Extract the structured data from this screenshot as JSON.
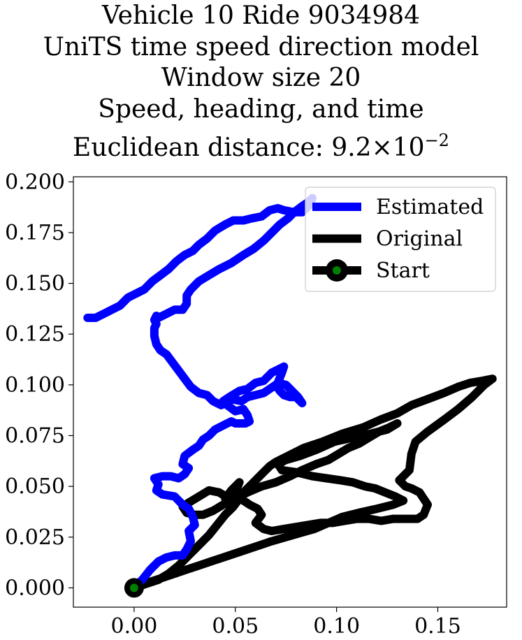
{
  "chart_data": {
    "type": "line",
    "title_lines": [
      "Vehicle 10 Ride 9034984",
      "UniTS time speed direction model",
      "Window size 20",
      "Speed, heading, and time",
      "Euclidean distance: 9.2×10",
      "−2"
    ],
    "xlabel": "",
    "ylabel": "",
    "xlim": [
      -0.03,
      0.184
    ],
    "ylim": [
      -0.0095,
      0.2025
    ],
    "xticks": [
      0.0,
      0.05,
      0.1,
      0.15
    ],
    "xtick_labels": [
      "0.00",
      "0.05",
      "0.10",
      "0.15"
    ],
    "yticks": [
      0.0,
      0.025,
      0.05,
      0.075,
      0.1,
      0.125,
      0.15,
      0.175,
      0.2
    ],
    "ytick_labels": [
      "0.000",
      "0.025",
      "0.050",
      "0.075",
      "0.100",
      "0.125",
      "0.150",
      "0.175",
      "0.200"
    ],
    "grid": false,
    "legend_position": "top-right",
    "colors": {
      "estimated": "#0000ff",
      "original": "#000000",
      "start": "#008000"
    },
    "series": [
      {
        "name": "Estimated",
        "color": "#0000ff",
        "x": [
          0.0,
          0.004,
          0.008,
          0.012,
          0.016,
          0.02,
          0.024,
          0.026,
          0.028,
          0.027,
          0.03,
          0.029,
          0.027,
          0.024,
          0.02,
          0.014,
          0.011,
          0.012,
          0.01,
          0.014,
          0.018,
          0.022,
          0.025,
          0.027,
          0.024,
          0.025,
          0.029,
          0.032,
          0.034,
          0.037,
          0.04,
          0.044,
          0.048,
          0.05,
          0.055,
          0.057,
          0.056,
          0.054,
          0.05,
          0.046,
          0.044,
          0.047,
          0.052,
          0.056,
          0.06,
          0.064,
          0.068,
          0.072,
          0.074,
          0.073,
          0.071,
          0.075,
          0.078,
          0.081,
          0.083,
          0.082,
          0.08,
          0.077,
          0.074,
          0.072,
          0.07,
          0.067,
          0.064,
          0.06,
          0.056,
          0.053,
          0.048,
          0.043,
          0.039,
          0.036,
          0.032,
          0.028,
          0.025,
          0.022,
          0.019,
          0.016,
          0.013,
          0.011,
          0.01,
          0.01,
          0.011,
          0.01,
          0.011,
          0.012,
          0.016,
          0.02,
          0.024,
          0.026,
          0.026,
          0.028,
          0.032,
          0.037,
          0.042,
          0.048,
          0.054,
          0.059,
          0.064,
          0.068,
          0.072,
          0.076,
          0.079,
          0.083,
          0.086,
          0.088,
          0.087,
          0.083,
          0.079,
          0.074,
          0.071,
          0.067,
          0.063,
          0.058,
          0.054,
          0.049,
          0.045,
          0.04,
          0.036,
          0.032,
          0.029,
          0.025,
          0.021,
          0.017,
          0.013,
          0.009,
          0.005,
          0.001,
          -0.003,
          -0.007,
          -0.011,
          -0.015,
          -0.019,
          -0.023
        ],
        "y": [
          0.0,
          0.004,
          0.009,
          0.013,
          0.015,
          0.016,
          0.016,
          0.019,
          0.023,
          0.028,
          0.031,
          0.035,
          0.039,
          0.041,
          0.045,
          0.046,
          0.048,
          0.051,
          0.054,
          0.055,
          0.055,
          0.054,
          0.056,
          0.059,
          0.061,
          0.065,
          0.068,
          0.07,
          0.073,
          0.075,
          0.078,
          0.08,
          0.082,
          0.081,
          0.081,
          0.082,
          0.085,
          0.088,
          0.087,
          0.09,
          0.092,
          0.094,
          0.097,
          0.098,
          0.101,
          0.102,
          0.106,
          0.108,
          0.109,
          0.106,
          0.101,
          0.1,
          0.097,
          0.094,
          0.091,
          0.092,
          0.094,
          0.094,
          0.095,
          0.097,
          0.1,
          0.098,
          0.096,
          0.095,
          0.094,
          0.092,
          0.093,
          0.09,
          0.092,
          0.095,
          0.096,
          0.099,
          0.103,
          0.107,
          0.111,
          0.115,
          0.117,
          0.12,
          0.124,
          0.128,
          0.13,
          0.132,
          0.134,
          0.133,
          0.135,
          0.137,
          0.137,
          0.14,
          0.144,
          0.147,
          0.151,
          0.154,
          0.157,
          0.16,
          0.164,
          0.167,
          0.171,
          0.175,
          0.179,
          0.182,
          0.185,
          0.188,
          0.19,
          0.192,
          0.189,
          0.185,
          0.185,
          0.186,
          0.187,
          0.186,
          0.183,
          0.182,
          0.181,
          0.181,
          0.179,
          0.176,
          0.172,
          0.169,
          0.166,
          0.164,
          0.161,
          0.157,
          0.154,
          0.151,
          0.147,
          0.145,
          0.143,
          0.139,
          0.137,
          0.135,
          0.133,
          0.133
        ]
      },
      {
        "name": "Original",
        "color": "#000000",
        "x": [
          0.0,
          0.006,
          0.012,
          0.017,
          0.022,
          0.027,
          0.032,
          0.037,
          0.041,
          0.045,
          0.049,
          0.052,
          0.055,
          0.058,
          0.061,
          0.064,
          0.067,
          0.07,
          0.076,
          0.084,
          0.093,
          0.103,
          0.113,
          0.122,
          0.13,
          0.137,
          0.145,
          0.153,
          0.16,
          0.166,
          0.172,
          0.177,
          0.173,
          0.167,
          0.16,
          0.152,
          0.145,
          0.139,
          0.137,
          0.136,
          0.131,
          0.134,
          0.137,
          0.141,
          0.145,
          0.143,
          0.14,
          0.134,
          0.128,
          0.122,
          0.116,
          0.11,
          0.104,
          0.098,
          0.092,
          0.086,
          0.08,
          0.074,
          0.068,
          0.064,
          0.06,
          0.063,
          0.061,
          0.057,
          0.054,
          0.05,
          0.047,
          0.045,
          0.048,
          0.052,
          0.05,
          0.047,
          0.042,
          0.037,
          0.032,
          0.027,
          0.024,
          0.026,
          0.03,
          0.034,
          0.039,
          0.044,
          0.05,
          0.056,
          0.063,
          0.07,
          0.077,
          0.083,
          0.09,
          0.096,
          0.101,
          0.106,
          0.111,
          0.116,
          0.121,
          0.126,
          0.13,
          0.125,
          0.117,
          0.108,
          0.099,
          0.09,
          0.082,
          0.075,
          0.071,
          0.073,
          0.08,
          0.088,
          0.095,
          0.102,
          0.108,
          0.114,
          0.119,
          0.124,
          0.129,
          0.133,
          0.128,
          0.12,
          0.111,
          0.103,
          0.096,
          0.089,
          0.082,
          0.075,
          0.068,
          0.062,
          0.056,
          0.05,
          0.044,
          0.038,
          0.032,
          0.026,
          0.02,
          0.014,
          0.008,
          0.003,
          0.0
        ],
        "y": [
          0.0,
          0.002,
          0.004,
          0.007,
          0.011,
          0.016,
          0.021,
          0.026,
          0.031,
          0.036,
          0.04,
          0.044,
          0.048,
          0.051,
          0.054,
          0.057,
          0.06,
          0.062,
          0.065,
          0.069,
          0.072,
          0.076,
          0.079,
          0.083,
          0.086,
          0.09,
          0.093,
          0.096,
          0.099,
          0.101,
          0.102,
          0.103,
          0.1,
          0.094,
          0.088,
          0.082,
          0.077,
          0.072,
          0.066,
          0.058,
          0.053,
          0.05,
          0.049,
          0.047,
          0.041,
          0.036,
          0.034,
          0.034,
          0.034,
          0.033,
          0.034,
          0.034,
          0.033,
          0.032,
          0.032,
          0.031,
          0.03,
          0.029,
          0.028,
          0.029,
          0.032,
          0.036,
          0.039,
          0.041,
          0.043,
          0.045,
          0.043,
          0.044,
          0.048,
          0.052,
          0.047,
          0.044,
          0.047,
          0.048,
          0.045,
          0.042,
          0.04,
          0.037,
          0.036,
          0.036,
          0.038,
          0.041,
          0.044,
          0.047,
          0.05,
          0.052,
          0.055,
          0.058,
          0.061,
          0.063,
          0.066,
          0.069,
          0.071,
          0.074,
          0.077,
          0.079,
          0.081,
          0.078,
          0.076,
          0.074,
          0.072,
          0.068,
          0.065,
          0.063,
          0.061,
          0.058,
          0.057,
          0.055,
          0.054,
          0.053,
          0.052,
          0.05,
          0.049,
          0.047,
          0.045,
          0.043,
          0.041,
          0.039,
          0.037,
          0.035,
          0.032,
          0.029,
          0.027,
          0.025,
          0.023,
          0.021,
          0.019,
          0.017,
          0.015,
          0.013,
          0.011,
          0.009,
          0.007,
          0.005,
          0.003,
          0.001,
          0.0
        ]
      }
    ],
    "start": {
      "label": "Start",
      "x": 0.0,
      "y": 0.0
    },
    "legend": [
      {
        "label": "Estimated",
        "color": "#0000ff",
        "marker": ""
      },
      {
        "label": "Original",
        "color": "#000000",
        "marker": ""
      },
      {
        "label": "Start",
        "color": "#000000",
        "marker": "circle"
      }
    ]
  }
}
